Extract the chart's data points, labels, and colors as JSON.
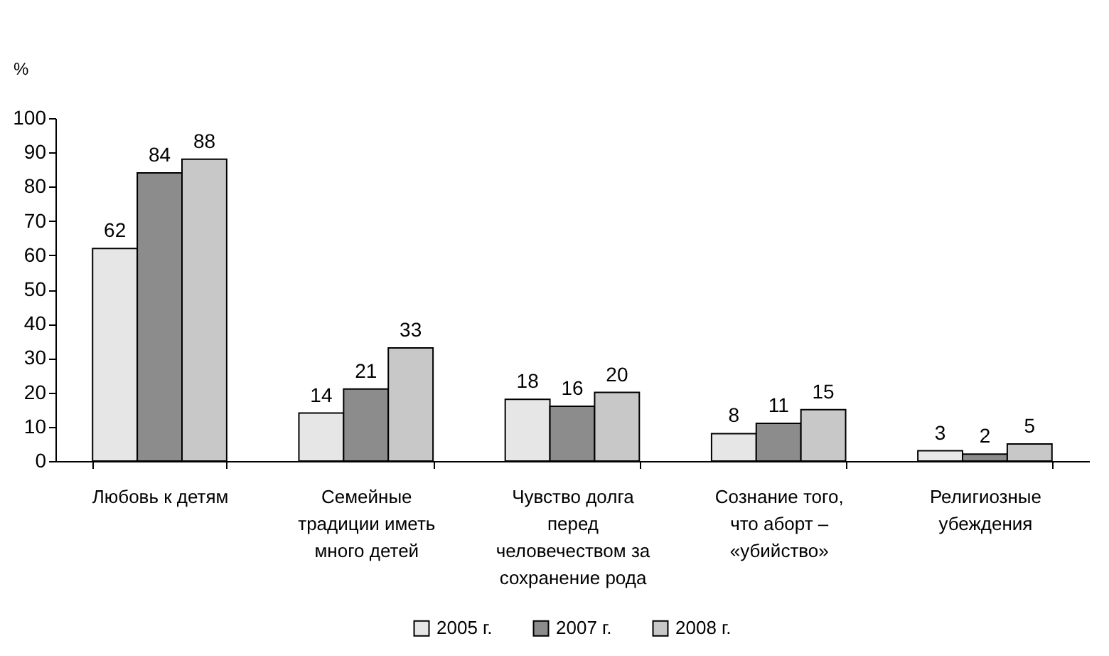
{
  "chart_data": {
    "type": "bar",
    "ylabel": "%",
    "categories": [
      "Любовь к детям",
      "Семейные традиции иметь много детей",
      "Чувство долга перед человечеством за сохранение рода",
      "Сознание того, что аборт – «убийство»",
      "Религиозные убеждения"
    ],
    "series": [
      {
        "name": "2005 г.",
        "color": "#e6e6e6",
        "values": [
          62,
          14,
          18,
          8,
          3
        ]
      },
      {
        "name": "2007 г.",
        "color": "#8c8c8c",
        "values": [
          84,
          21,
          16,
          11,
          2
        ]
      },
      {
        "name": "2008 г.",
        "color": "#c8c8c8",
        "values": [
          88,
          33,
          20,
          15,
          5
        ]
      }
    ],
    "ylim": [
      0,
      100
    ],
    "yticks": [
      0,
      10,
      20,
      30,
      40,
      50,
      60,
      70,
      80,
      90,
      100
    ],
    "grid": false,
    "legend": "bottom",
    "data_labels": true
  }
}
